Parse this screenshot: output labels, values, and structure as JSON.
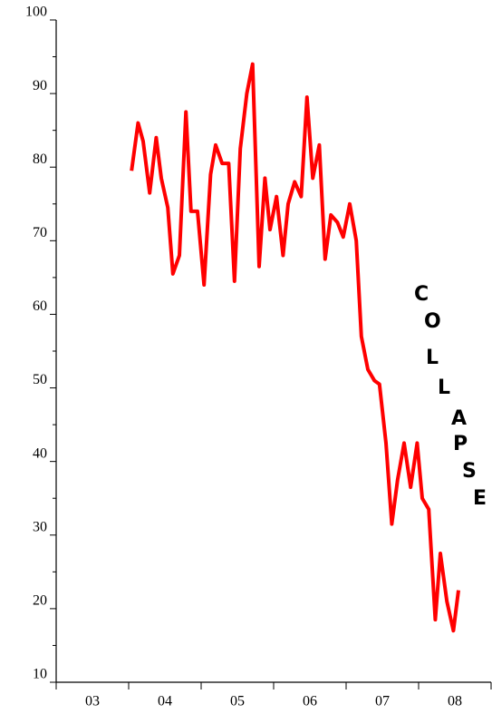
{
  "chart_data": {
    "type": "line",
    "annotation": "COLLAPSE",
    "x": [
      2004.04,
      2004.13,
      2004.2,
      2004.29,
      2004.38,
      2004.45,
      2004.54,
      2004.61,
      2004.7,
      2004.79,
      2004.86,
      2004.95,
      2005.04,
      2005.13,
      2005.2,
      2005.29,
      2005.38,
      2005.46,
      2005.54,
      2005.63,
      2005.71,
      2005.8,
      2005.88,
      2005.95,
      2006.04,
      2006.13,
      2006.2,
      2006.29,
      2006.38,
      2006.46,
      2006.54,
      2006.63,
      2006.71,
      2006.79,
      2006.88,
      2006.96,
      2007.05,
      2007.14,
      2007.21,
      2007.3,
      2007.39,
      2007.46,
      2007.55,
      2007.63,
      2007.71,
      2007.8,
      2007.89,
      2007.98,
      2008.05,
      2008.14,
      2008.23,
      2008.3,
      2008.39,
      2008.48,
      2008.55
    ],
    "series": [
      {
        "color": "#ff0000",
        "values": [
          79.5,
          86,
          83.5,
          76.5,
          84,
          78.5,
          74.5,
          65.5,
          68,
          87.5,
          74,
          74,
          64,
          79,
          83,
          80.5,
          80.5,
          64.5,
          82.5,
          90,
          94,
          66.5,
          78.5,
          71.5,
          76,
          68,
          75,
          78,
          76,
          89.5,
          78.5,
          83,
          67.5,
          73.5,
          72.5,
          70.5,
          75,
          70,
          57,
          52.5,
          51,
          50.5,
          42.5,
          31.5,
          37.5,
          42.5,
          36.5,
          42.5,
          35,
          33.5,
          18.5,
          27.5,
          21,
          17,
          22.5
        ]
      }
    ],
    "xlim": [
      2003,
      2009
    ],
    "xticks": [
      {
        "value": 2003.5,
        "label": "03"
      },
      {
        "value": 2004.5,
        "label": "04"
      },
      {
        "value": 2005.5,
        "label": "05"
      },
      {
        "value": 2006.5,
        "label": "06"
      },
      {
        "value": 2007.5,
        "label": "07"
      },
      {
        "value": 2008.5,
        "label": "08"
      }
    ],
    "xminor_ticks": [
      2003,
      2004,
      2005,
      2006,
      2007,
      2008,
      2009
    ],
    "ylim": [
      10,
      100
    ],
    "yticks": [
      10,
      20,
      30,
      40,
      50,
      60,
      70,
      80,
      90,
      100
    ],
    "yminor_ticks": [
      15,
      25,
      35,
      45,
      55,
      65,
      75,
      85,
      95
    ]
  }
}
